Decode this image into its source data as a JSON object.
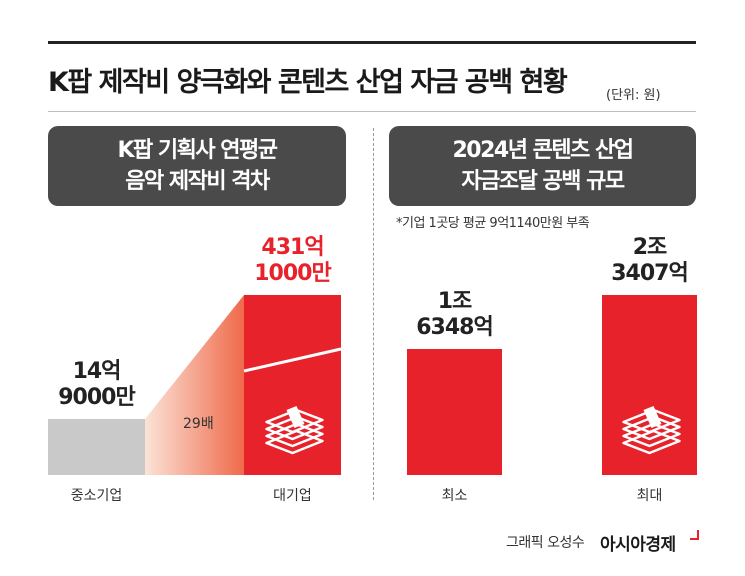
{
  "title": "K팝 제작비 양극화와 콘텐츠 산업 자금 공백 현황",
  "unit": "(단위: 원)",
  "left_panel": {
    "line1": "K팝 기획사 연평균",
    "line2": "음악 제작비 격차"
  },
  "right_panel": {
    "line1": "2024년 콘텐츠 산업",
    "line2": "자금조달 공백 규모"
  },
  "note": "*기업 1곳당 평균 9억1140만원 부족",
  "multiplier_label": "29배",
  "credit": "그래픽 오성수",
  "brand": "아시아경제",
  "colors": {
    "red": "#e8222a",
    "gray": "#c9c9c9",
    "panel": "#4a4a4a"
  },
  "icons": [
    "money-stack-icon",
    "money-stack-icon"
  ],
  "chart_data": [
    {
      "type": "bar",
      "categories": [
        "중소기업",
        "대기업"
      ],
      "values": [
        14.9,
        431.1
      ],
      "unit_note": "억원",
      "labels": [
        {
          "line1": "14억",
          "line2": "9000만"
        },
        {
          "line1": "431억",
          "line2": "1000만"
        }
      ],
      "colors": [
        "#c9c9c9",
        "#e8222a"
      ],
      "annotation": "29배"
    },
    {
      "type": "bar",
      "categories": [
        "최소",
        "최대"
      ],
      "values": [
        16348,
        23407
      ],
      "unit_note": "억원",
      "labels": [
        {
          "line1": "1조",
          "line2": "6348억"
        },
        {
          "line1": "2조",
          "line2": "3407억"
        }
      ],
      "colors": [
        "#e8222a",
        "#e8222a"
      ]
    }
  ]
}
